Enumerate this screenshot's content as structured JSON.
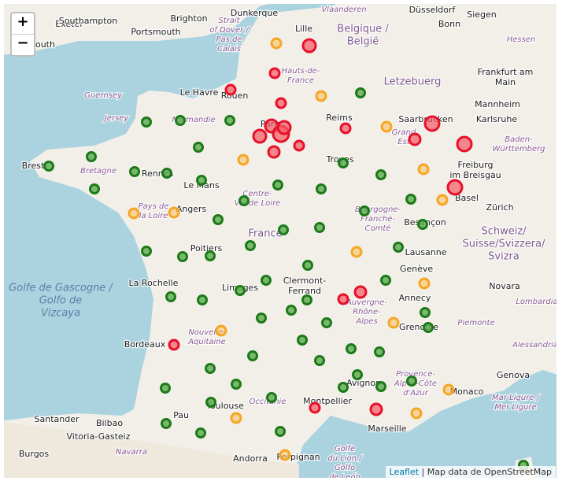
{
  "zoom_control": {
    "zoom_in": "+",
    "zoom_out": "−"
  },
  "places": [
    [
      "Exeter"
    ],
    [
      "Southampton"
    ],
    [
      "Brighton"
    ],
    [
      "Portsmouth"
    ],
    [
      "Plymouth"
    ],
    [
      "Dunkerque"
    ],
    [
      "Lille"
    ],
    [
      "Düsseldorf"
    ],
    [
      "Bonn"
    ],
    [
      "Siegen"
    ],
    [
      "Frankfurt am",
      "Main"
    ],
    [
      "Mannheim"
    ],
    [
      "Karlsruhe"
    ],
    [
      "Saarbrücken"
    ],
    [
      "Rouen"
    ],
    [
      "Le Havre"
    ],
    [
      "Reims"
    ],
    [
      "Paris"
    ],
    [
      "Troyes"
    ],
    [
      "Brest"
    ],
    [
      "Rennes"
    ],
    [
      "Le Mans"
    ],
    [
      "Angers"
    ],
    [
      "Freiburg",
      "im Breisgau"
    ],
    [
      "Basel"
    ],
    [
      "Zürich"
    ],
    [
      "Besançon"
    ],
    [
      "Lausanne"
    ],
    [
      "Genève"
    ],
    [
      "Poitiers"
    ],
    [
      "La Rochelle"
    ],
    [
      "Limoges"
    ],
    [
      "Clermont-",
      "Ferrand"
    ],
    [
      "Annecy"
    ],
    [
      "Novara"
    ],
    [
      "Grenoble"
    ],
    [
      "Bordeaux"
    ],
    [
      "Genova"
    ],
    [
      "Avignon"
    ],
    [
      "Monaco"
    ],
    [
      "Montpellier"
    ],
    [
      "Toulouse"
    ],
    [
      "Pau"
    ],
    [
      "Marseille"
    ],
    [
      "Santander"
    ],
    [
      "Bilbao"
    ],
    [
      "Vitoria-Gasteiz"
    ],
    [
      "Burgos"
    ],
    [
      "Andorra"
    ],
    [
      "Perpignan"
    ]
  ],
  "regions": [
    [
      "Strait",
      "of Dover /",
      "Pas de",
      "Calais"
    ],
    [
      "Vlaanderen"
    ],
    [
      "Hauts-de-",
      "France"
    ],
    [
      "Hessen"
    ],
    [
      "Normandie"
    ],
    [
      "Grand",
      "Est"
    ],
    [
      "Baden-",
      "Württemberg"
    ],
    [
      "Bretagne"
    ],
    [
      "Pays de",
      "la Loire"
    ],
    [
      "Centre-",
      "Val de Loire"
    ],
    [
      "Bourgogne-",
      "Franche-",
      "Comté"
    ],
    [
      "Nouvelle-",
      "Aquitaine"
    ],
    [
      "Auvergne-",
      "Rhône-",
      "Alpes"
    ],
    [
      "Piemonte"
    ],
    [
      "Lombardia"
    ],
    [
      "Alessandria"
    ],
    [
      "Provence-",
      "Alpes-Côte",
      "d'Azur"
    ],
    [
      "Occitanie"
    ],
    [
      "Mar Ligure /",
      "Mer Ligure"
    ],
    [
      "Golfe",
      "du Lion /",
      "Golfo",
      "de León"
    ],
    [
      "Navarra"
    ],
    [
      "Guernsey"
    ],
    [
      "Jersey"
    ]
  ],
  "countries": [
    [
      "Belgique /",
      "België"
    ],
    [
      "Letzebuerg"
    ],
    [
      "France"
    ],
    [
      "Schweiz/",
      "Suisse/Svizzera/",
      "Svizra"
    ]
  ],
  "seas": [
    [
      "Golfe de Gascogne /",
      "Golfo de",
      "Vizcaya"
    ]
  ],
  "attribution": {
    "link": "Leaflet",
    "text": "| Map data de OpenStreetMap"
  }
}
